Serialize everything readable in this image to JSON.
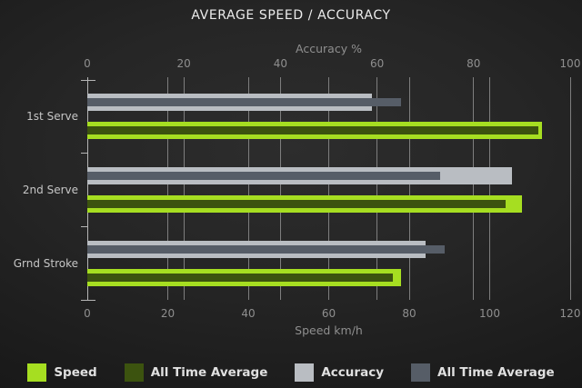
{
  "colors": {
    "speed": "#A6DE21",
    "speed_avg": "#3C530F",
    "accuracy": "#B9BDC2",
    "accuracy_avg": "#565D67",
    "grid": "#7e7e7e",
    "axis": "#b5b5b5",
    "tick_text": "#8f8f8f",
    "category_text": "#c6c6c6",
    "title_text": "#ececec",
    "legend_text": "#e0e0e0"
  },
  "chart_data": {
    "type": "bar",
    "orientation": "horizontal",
    "title": "AVERAGE SPEED / ACCURACY",
    "categories": [
      "1st Serve",
      "2nd Serve",
      "Grnd Stroke"
    ],
    "top_axis": {
      "label": "Accuracy %",
      "min": 0,
      "max": 100,
      "ticks": [
        0,
        20,
        40,
        60,
        80,
        100
      ]
    },
    "bottom_axis": {
      "label": "Speed km/h",
      "min": 0,
      "max": 120,
      "ticks": [
        0,
        20,
        40,
        60,
        80,
        100,
        120
      ]
    },
    "grid": true,
    "legend_position": "bottom",
    "series": [
      {
        "name": "Speed",
        "axis": "bottom",
        "color_key": "speed",
        "values": [
          113,
          108,
          78
        ]
      },
      {
        "name": "All Time Average",
        "axis": "bottom",
        "color_key": "speed_avg",
        "values": [
          112,
          104,
          76
        ]
      },
      {
        "name": "Accuracy",
        "axis": "top",
        "color_key": "accuracy",
        "values": [
          59,
          88,
          70
        ]
      },
      {
        "name": "All Time Average",
        "axis": "top",
        "color_key": "accuracy_avg",
        "values": [
          65,
          73,
          74
        ]
      }
    ],
    "legend": [
      {
        "label": "Speed",
        "color_key": "speed"
      },
      {
        "label": "All Time Average",
        "color_key": "speed_avg"
      },
      {
        "label": "Accuracy",
        "color_key": "accuracy"
      },
      {
        "label": "All Time Average",
        "color_key": "accuracy_avg"
      }
    ]
  }
}
